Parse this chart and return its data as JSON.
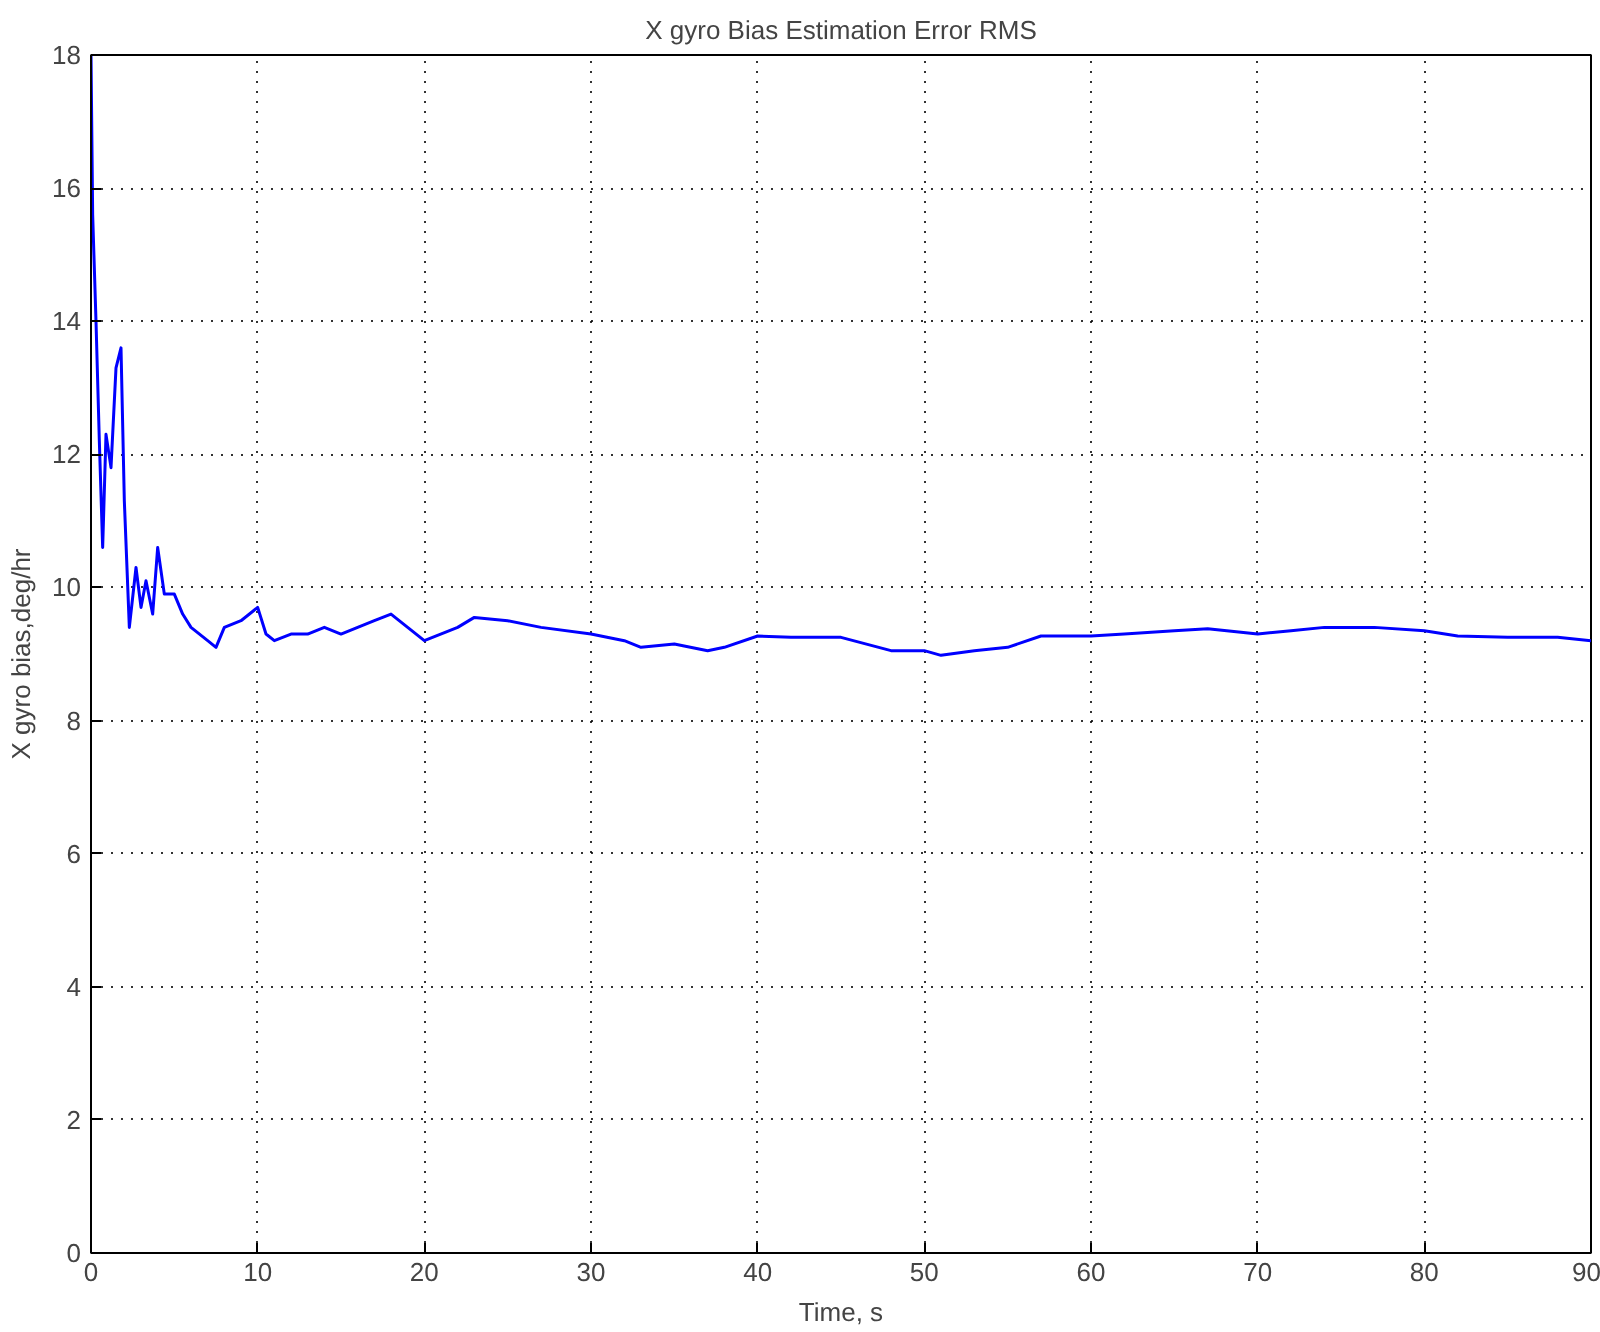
{
  "chart_data": {
    "type": "line",
    "title": "X gyro Bias Estimation Error RMS",
    "xlabel": "Time, s",
    "ylabel": "X gyro bias,deg/hr",
    "x": [
      0,
      0.1,
      0.3,
      0.5,
      0.7,
      0.9,
      1.2,
      1.5,
      1.8,
      2.0,
      2.3,
      2.7,
      3.0,
      3.3,
      3.7,
      4.0,
      4.4,
      5,
      5.5,
      6,
      7,
      7.5,
      8,
      9,
      10,
      10.5,
      11,
      12,
      13,
      14,
      15,
      16,
      17,
      18,
      19,
      20,
      22,
      23,
      25,
      27,
      30,
      32,
      33,
      35,
      37,
      38,
      40,
      42,
      45,
      48,
      50,
      51,
      53,
      55,
      57,
      60,
      62,
      65,
      67,
      70,
      72,
      74,
      77,
      80,
      82,
      85,
      88,
      90
    ],
    "series": [
      {
        "color": "#0000ff",
        "values": [
          18,
          15.6,
          14,
          12.2,
          10.6,
          12.3,
          11.8,
          13.3,
          13.6,
          11.3,
          9.4,
          10.3,
          9.7,
          10.1,
          9.6,
          10.6,
          9.9,
          9.9,
          9.6,
          9.4,
          9.2,
          9.1,
          9.4,
          9.5,
          9.7,
          9.3,
          9.2,
          9.3,
          9.3,
          9.4,
          9.3,
          9.4,
          9.5,
          9.6,
          9.4,
          9.2,
          9.4,
          9.55,
          9.5,
          9.4,
          9.3,
          9.2,
          9.1,
          9.15,
          9.05,
          9.1,
          9.27,
          9.25,
          9.25,
          9.05,
          9.05,
          8.98,
          9.05,
          9.1,
          9.27,
          9.27,
          9.3,
          9.35,
          9.38,
          9.3,
          9.35,
          9.4,
          9.4,
          9.35,
          9.27,
          9.25,
          9.25,
          9.2
        ]
      }
    ],
    "xlim": [
      0,
      90
    ],
    "ylim": [
      0,
      18
    ],
    "xticks": [
      0,
      10,
      20,
      30,
      40,
      50,
      60,
      70,
      80,
      90
    ],
    "yticks": [
      0,
      2,
      4,
      6,
      8,
      10,
      12,
      14,
      16,
      18
    ],
    "grid": true,
    "line_style": "solid"
  }
}
